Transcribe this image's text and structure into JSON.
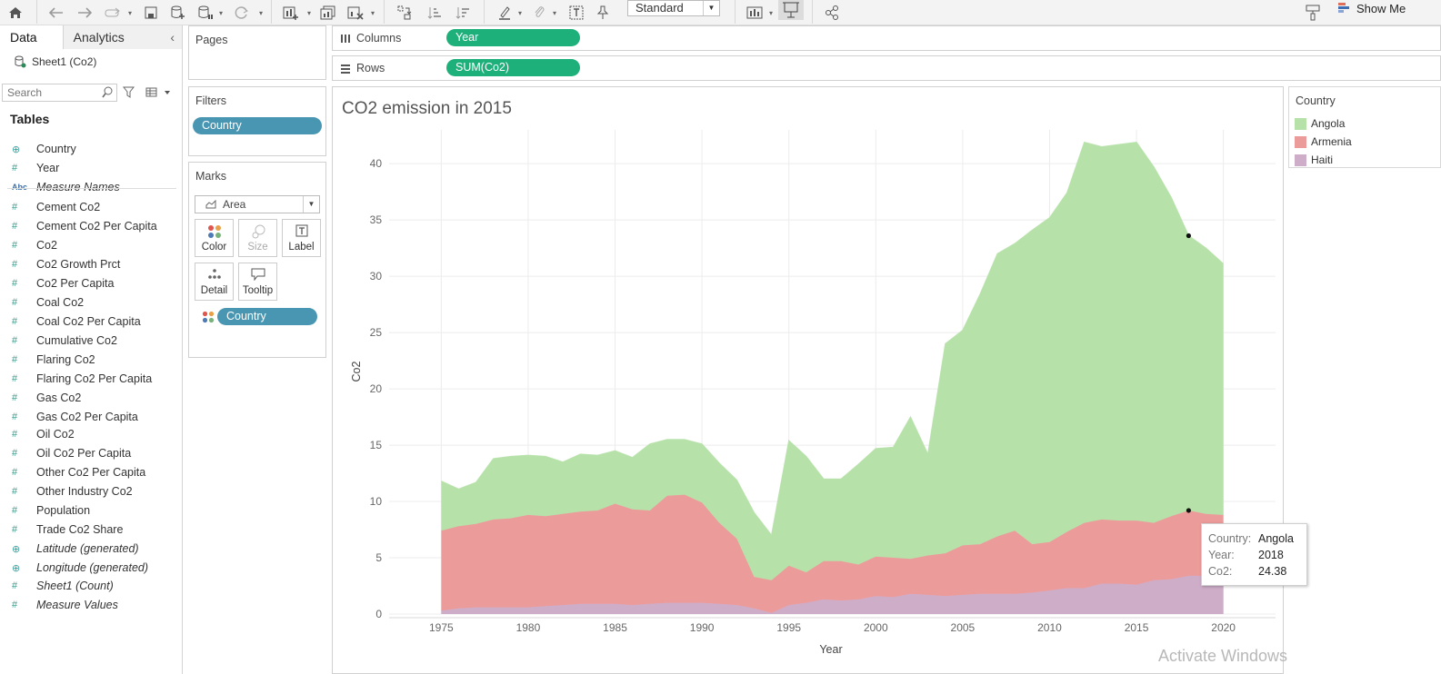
{
  "toolbar": {
    "format_select": "Standard",
    "show_me_label": "Show Me"
  },
  "datapane": {
    "tab_data": "Data",
    "tab_analytics": "Analytics",
    "source": "Sheet1 (Co2)",
    "search_placeholder": "Search",
    "tables_heading": "Tables",
    "fields": [
      {
        "icon": "globe-icon",
        "name": "Country",
        "italic": false
      },
      {
        "icon": "hash-icon",
        "name": "Year",
        "italic": false
      },
      {
        "icon": "abc-icon",
        "name": "Measure Names",
        "italic": true
      },
      {
        "icon": "hash-icon",
        "name": "Cement Co2",
        "italic": false
      },
      {
        "icon": "hash-icon",
        "name": "Cement Co2 Per Capita",
        "italic": false
      },
      {
        "icon": "hash-icon",
        "name": "Co2",
        "italic": false
      },
      {
        "icon": "hash-icon",
        "name": "Co2 Growth Prct",
        "italic": false
      },
      {
        "icon": "hash-icon",
        "name": "Co2 Per Capita",
        "italic": false
      },
      {
        "icon": "hash-icon",
        "name": "Coal Co2",
        "italic": false
      },
      {
        "icon": "hash-icon",
        "name": "Coal Co2 Per Capita",
        "italic": false
      },
      {
        "icon": "hash-icon",
        "name": "Cumulative Co2",
        "italic": false
      },
      {
        "icon": "hash-icon",
        "name": "Flaring Co2",
        "italic": false
      },
      {
        "icon": "hash-icon",
        "name": "Flaring Co2 Per Capita",
        "italic": false
      },
      {
        "icon": "hash-icon",
        "name": "Gas Co2",
        "italic": false
      },
      {
        "icon": "hash-icon",
        "name": "Gas Co2 Per Capita",
        "italic": false
      },
      {
        "icon": "hash-icon",
        "name": "Oil Co2",
        "italic": false
      },
      {
        "icon": "hash-icon",
        "name": "Oil Co2 Per Capita",
        "italic": false
      },
      {
        "icon": "hash-icon",
        "name": "Other Co2 Per Capita",
        "italic": false
      },
      {
        "icon": "hash-icon",
        "name": "Other Industry Co2",
        "italic": false
      },
      {
        "icon": "hash-icon",
        "name": "Population",
        "italic": false
      },
      {
        "icon": "hash-icon",
        "name": "Trade Co2 Share",
        "italic": false
      },
      {
        "icon": "globe-icon",
        "name": "Latitude (generated)",
        "italic": true
      },
      {
        "icon": "globe-icon",
        "name": "Longitude (generated)",
        "italic": true
      },
      {
        "icon": "hash-icon",
        "name": "Sheet1 (Count)",
        "italic": true
      },
      {
        "icon": "hash-icon",
        "name": "Measure Values",
        "italic": true
      }
    ]
  },
  "shelves": {
    "pages_title": "Pages",
    "filters_title": "Filters",
    "filter_pill": "Country",
    "marks_title": "Marks",
    "mark_type": "Area",
    "mark_buttons": {
      "color": "Color",
      "size": "Size",
      "label": "Label",
      "detail": "Detail",
      "tooltip": "Tooltip"
    },
    "marks_pill": "Country",
    "columns_label": "Columns",
    "columns_pill": "Year",
    "rows_label": "Rows",
    "rows_pill": "SUM(Co2)"
  },
  "legend": {
    "title": "Country",
    "items": [
      {
        "label": "Angola",
        "color": "#b6e1a8"
      },
      {
        "label": "Armenia",
        "color": "#ec9b9b"
      },
      {
        "label": "Haiti",
        "color": "#ceadc9"
      }
    ]
  },
  "tooltip": {
    "rows": [
      {
        "key": "Country:",
        "value": "Angola"
      },
      {
        "key": "Year:",
        "value": "2018"
      },
      {
        "key": "Co2:",
        "value": "24.38"
      }
    ]
  },
  "watermark": "Activate Windows",
  "chart_data": {
    "type": "area",
    "stacked": true,
    "title": "CO2 emission in 2015",
    "xlabel": "Year",
    "ylabel": "Co2",
    "xlim": [
      1972,
      2023
    ],
    "ylim": [
      0,
      43
    ],
    "x_ticks": [
      1975,
      1980,
      1985,
      1990,
      1995,
      2000,
      2005,
      2010,
      2015,
      2020
    ],
    "y_ticks": [
      0,
      5,
      10,
      15,
      20,
      25,
      30,
      35,
      40
    ],
    "grid": true,
    "legend_position": "right",
    "x": [
      1975,
      1976,
      1977,
      1978,
      1979,
      1980,
      1981,
      1982,
      1983,
      1984,
      1985,
      1986,
      1987,
      1988,
      1989,
      1990,
      1991,
      1992,
      1993,
      1994,
      1995,
      1996,
      1997,
      1998,
      1999,
      2000,
      2001,
      2002,
      2003,
      2004,
      2005,
      2006,
      2007,
      2008,
      2009,
      2010,
      2011,
      2012,
      2013,
      2014,
      2015,
      2016,
      2017,
      2018,
      2019,
      2020
    ],
    "series": [
      {
        "name": "Haiti",
        "color": "#ceadc9",
        "values": [
          0.3,
          0.5,
          0.6,
          0.6,
          0.6,
          0.6,
          0.7,
          0.8,
          0.9,
          0.9,
          0.9,
          0.8,
          0.9,
          1.0,
          1.0,
          1.0,
          0.9,
          0.8,
          0.5,
          0.1,
          0.8,
          1.0,
          1.3,
          1.2,
          1.3,
          1.6,
          1.5,
          1.8,
          1.7,
          1.6,
          1.7,
          1.8,
          1.8,
          1.8,
          1.9,
          2.1,
          2.3,
          2.3,
          2.7,
          2.7,
          2.6,
          3.0,
          3.1,
          3.4,
          3.4,
          3.4
        ]
      },
      {
        "name": "Armenia",
        "color": "#ec9b9b",
        "values": [
          7.1,
          7.3,
          7.4,
          7.8,
          7.9,
          8.2,
          8.0,
          8.1,
          8.2,
          8.3,
          8.9,
          8.5,
          8.3,
          9.5,
          9.6,
          8.9,
          7.2,
          5.9,
          2.8,
          2.9,
          3.5,
          2.7,
          3.4,
          3.5,
          3.1,
          3.5,
          3.5,
          3.1,
          3.5,
          3.8,
          4.4,
          4.4,
          5.1,
          5.6,
          4.3,
          4.3,
          5.0,
          5.8,
          5.7,
          5.6,
          5.7,
          5.1,
          5.6,
          5.8,
          5.5,
          5.4
        ]
      },
      {
        "name": "Angola",
        "color": "#b6e1a8",
        "values": [
          4.4,
          3.3,
          3.7,
          5.4,
          5.5,
          5.3,
          5.3,
          4.6,
          5.1,
          4.9,
          4.7,
          4.6,
          5.9,
          5.0,
          4.9,
          5.2,
          5.3,
          5.2,
          5.7,
          4.0,
          11.1,
          10.3,
          7.3,
          7.3,
          8.9,
          9.6,
          9.8,
          12.6,
          9.0,
          18.6,
          19.1,
          22.2,
          25.1,
          25.5,
          27.9,
          28.8,
          30.1,
          33.8,
          33.1,
          33.4,
          33.6,
          31.6,
          28.3,
          24.4,
          23.6,
          22.3
        ]
      }
    ],
    "highlighted_points": [
      {
        "series": "Angola",
        "x": 2018
      },
      {
        "series": "Armenia",
        "x": 2018
      }
    ]
  }
}
